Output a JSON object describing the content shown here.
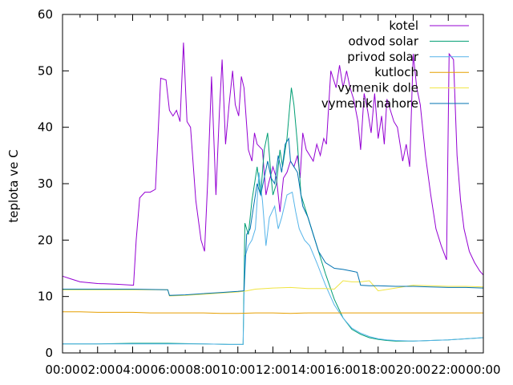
{
  "chart_data": {
    "type": "line",
    "title": "",
    "xlabel": "",
    "ylabel": "teplota ve C",
    "xlim": [
      0,
      24
    ],
    "ylim": [
      0,
      60
    ],
    "x_ticks": [
      {
        "value": 0,
        "label": "00:00"
      },
      {
        "value": 2,
        "label": "02:00"
      },
      {
        "value": 4,
        "label": "04:00"
      },
      {
        "value": 6,
        "label": "06:00"
      },
      {
        "value": 8,
        "label": "08:00"
      },
      {
        "value": 10,
        "label": "10:00"
      },
      {
        "value": 12,
        "label": "12:00"
      },
      {
        "value": 14,
        "label": "14:00"
      },
      {
        "value": 16,
        "label": "16:00"
      },
      {
        "value": 18,
        "label": "18:00"
      },
      {
        "value": 20,
        "label": "20:00"
      },
      {
        "value": 22,
        "label": "22:00"
      },
      {
        "value": 24,
        "label": "00:00"
      }
    ],
    "y_ticks": [
      0,
      10,
      20,
      30,
      40,
      50,
      60
    ],
    "grid": false,
    "legend_position": "top-right",
    "series": [
      {
        "name": "kotel",
        "color": "#9400d3",
        "points": [
          [
            0,
            13.6
          ],
          [
            0.5,
            13.1
          ],
          [
            1,
            12.6
          ],
          [
            2,
            12.3
          ],
          [
            3,
            12.2
          ],
          [
            4.05,
            12
          ],
          [
            4.2,
            20
          ],
          [
            4.4,
            27.5
          ],
          [
            4.7,
            28.5
          ],
          [
            5,
            28.5
          ],
          [
            5.3,
            29
          ],
          [
            5.6,
            48.7
          ],
          [
            5.9,
            48.4
          ],
          [
            6.1,
            43
          ],
          [
            6.3,
            42
          ],
          [
            6.5,
            43
          ],
          [
            6.7,
            41
          ],
          [
            6.9,
            55
          ],
          [
            7.1,
            41
          ],
          [
            7.3,
            40
          ],
          [
            7.6,
            27
          ],
          [
            7.9,
            20
          ],
          [
            8.1,
            18
          ],
          [
            8.3,
            32
          ],
          [
            8.5,
            49
          ],
          [
            8.75,
            28
          ],
          [
            8.95,
            43
          ],
          [
            9.1,
            52
          ],
          [
            9.3,
            37
          ],
          [
            9.5,
            44
          ],
          [
            9.7,
            50
          ],
          [
            9.85,
            44
          ],
          [
            10.05,
            42
          ],
          [
            10.2,
            49
          ],
          [
            10.35,
            47
          ],
          [
            10.6,
            36
          ],
          [
            10.8,
            34
          ],
          [
            10.95,
            39
          ],
          [
            11.1,
            37
          ],
          [
            11.4,
            36
          ],
          [
            11.6,
            28
          ],
          [
            11.75,
            30
          ],
          [
            12,
            33
          ],
          [
            12.2,
            31
          ],
          [
            12.4,
            25
          ],
          [
            12.6,
            31
          ],
          [
            12.8,
            32
          ],
          [
            13,
            34
          ],
          [
            13.2,
            33
          ],
          [
            13.4,
            35
          ],
          [
            13.55,
            31
          ],
          [
            13.7,
            39
          ],
          [
            13.9,
            36
          ],
          [
            14.1,
            35
          ],
          [
            14.3,
            34
          ],
          [
            14.5,
            37
          ],
          [
            14.7,
            35
          ],
          [
            14.9,
            38
          ],
          [
            15.05,
            37
          ],
          [
            15.3,
            50
          ],
          [
            15.6,
            47
          ],
          [
            15.8,
            51
          ],
          [
            16,
            47
          ],
          [
            16.2,
            50
          ],
          [
            16.4,
            47
          ],
          [
            16.6,
            45
          ],
          [
            16.85,
            41
          ],
          [
            17,
            36
          ],
          [
            17.2,
            46
          ],
          [
            17.4,
            43
          ],
          [
            17.6,
            39
          ],
          [
            17.8,
            46
          ],
          [
            18,
            38
          ],
          [
            18.2,
            42
          ],
          [
            18.35,
            37
          ],
          [
            18.5,
            45
          ],
          [
            18.7,
            43
          ],
          [
            18.9,
            41
          ],
          [
            19.1,
            40
          ],
          [
            19.4,
            34
          ],
          [
            19.6,
            37
          ],
          [
            19.8,
            33
          ],
          [
            20,
            53
          ],
          [
            20.2,
            47
          ],
          [
            20.4,
            44
          ],
          [
            20.7,
            35
          ],
          [
            21,
            28
          ],
          [
            21.3,
            22
          ],
          [
            21.6,
            19
          ],
          [
            21.9,
            16.5
          ],
          [
            22.05,
            53
          ],
          [
            22.3,
            52
          ],
          [
            22.5,
            35
          ],
          [
            22.7,
            27
          ],
          [
            22.9,
            22
          ],
          [
            23.2,
            18
          ],
          [
            23.5,
            16
          ],
          [
            23.8,
            14.5
          ],
          [
            24,
            13.8
          ]
        ]
      },
      {
        "name": "odvod solar",
        "color": "#009e73",
        "points": [
          [
            0,
            1.6
          ],
          [
            2,
            1.6
          ],
          [
            4,
            1.7
          ],
          [
            6,
            1.7
          ],
          [
            8,
            1.6
          ],
          [
            9.5,
            1.5
          ],
          [
            10.3,
            1.5
          ],
          [
            10.4,
            23
          ],
          [
            10.6,
            21
          ],
          [
            10.8,
            27
          ],
          [
            11.1,
            33
          ],
          [
            11.3,
            28
          ],
          [
            11.5,
            36
          ],
          [
            11.7,
            39
          ],
          [
            11.9,
            31
          ],
          [
            12,
            28
          ],
          [
            12.2,
            30
          ],
          [
            12.4,
            36
          ],
          [
            12.55,
            33
          ],
          [
            12.8,
            38
          ],
          [
            13.05,
            47
          ],
          [
            13.2,
            44
          ],
          [
            13.4,
            37
          ],
          [
            13.6,
            28
          ],
          [
            13.8,
            26
          ],
          [
            14.1,
            23
          ],
          [
            14.5,
            19
          ],
          [
            15,
            14
          ],
          [
            15.5,
            9.5
          ],
          [
            16,
            6.2
          ],
          [
            16.5,
            4.2
          ],
          [
            17,
            3.3
          ],
          [
            17.5,
            2.7
          ],
          [
            18,
            2.4
          ],
          [
            18.5,
            2.2
          ],
          [
            19,
            2.1
          ],
          [
            20,
            2.1
          ],
          [
            21,
            2.2
          ],
          [
            22,
            2.3
          ],
          [
            23,
            2.5
          ],
          [
            24,
            2.7
          ]
        ]
      },
      {
        "name": "privod solar",
        "color": "#56b4e9",
        "points": [
          [
            0,
            1.6
          ],
          [
            2,
            1.6
          ],
          [
            4,
            1.6
          ],
          [
            6,
            1.6
          ],
          [
            8,
            1.6
          ],
          [
            9.5,
            1.5
          ],
          [
            10.3,
            1.5
          ],
          [
            10.4,
            17
          ],
          [
            10.6,
            19
          ],
          [
            10.8,
            20
          ],
          [
            11,
            22
          ],
          [
            11.2,
            32
          ],
          [
            11.4,
            27
          ],
          [
            11.6,
            19
          ],
          [
            11.8,
            24
          ],
          [
            12.1,
            26
          ],
          [
            12.3,
            22
          ],
          [
            12.5,
            24
          ],
          [
            12.8,
            28
          ],
          [
            13.1,
            28.5
          ],
          [
            13.3,
            25
          ],
          [
            13.5,
            22
          ],
          [
            13.8,
            20
          ],
          [
            14.1,
            19
          ],
          [
            14.5,
            16
          ],
          [
            15,
            12
          ],
          [
            15.5,
            8.5
          ],
          [
            16,
            6.2
          ],
          [
            16.5,
            4.4
          ],
          [
            17,
            3.5
          ],
          [
            17.5,
            2.9
          ],
          [
            18,
            2.5
          ],
          [
            18.5,
            2.3
          ],
          [
            19,
            2.2
          ],
          [
            20,
            2.1
          ],
          [
            21,
            2.2
          ],
          [
            22,
            2.3
          ],
          [
            23,
            2.5
          ],
          [
            24,
            2.7
          ]
        ]
      },
      {
        "name": "kutloch",
        "color": "#e69f00",
        "points": [
          [
            0,
            7.3
          ],
          [
            1,
            7.3
          ],
          [
            2,
            7.2
          ],
          [
            3,
            7.2
          ],
          [
            4,
            7.2
          ],
          [
            5,
            7.1
          ],
          [
            6,
            7.1
          ],
          [
            7,
            7.1
          ],
          [
            8,
            7.1
          ],
          [
            9,
            7.0
          ],
          [
            10,
            7.0
          ],
          [
            11,
            7.1
          ],
          [
            12,
            7.1
          ],
          [
            13,
            7.0
          ],
          [
            14,
            7.1
          ],
          [
            15,
            7.1
          ],
          [
            16,
            7.1
          ],
          [
            17,
            7.1
          ],
          [
            18,
            7.1
          ],
          [
            19,
            7.1
          ],
          [
            20,
            7.1
          ],
          [
            21,
            7.1
          ],
          [
            22,
            7.1
          ],
          [
            23,
            7.1
          ],
          [
            24,
            7.1
          ]
        ]
      },
      {
        "name": "vymenik dole",
        "color": "#f0e442",
        "points": [
          [
            0,
            11.2
          ],
          [
            2,
            11.2
          ],
          [
            4,
            11.2
          ],
          [
            6,
            11.2
          ],
          [
            6.1,
            10.1
          ],
          [
            7,
            10.2
          ],
          [
            8,
            10.4
          ],
          [
            9,
            10.6
          ],
          [
            10,
            10.8
          ],
          [
            10.5,
            11
          ],
          [
            11,
            11.3
          ],
          [
            12,
            11.5
          ],
          [
            13,
            11.6
          ],
          [
            14,
            11.4
          ],
          [
            15,
            11.4
          ],
          [
            15.5,
            11.3
          ],
          [
            16,
            12.8
          ],
          [
            16.5,
            12.6
          ],
          [
            17,
            12.6
          ],
          [
            17.5,
            12.8
          ],
          [
            18,
            11
          ],
          [
            19,
            11.5
          ],
          [
            20,
            12
          ],
          [
            21,
            11.9
          ],
          [
            22,
            11.8
          ],
          [
            23,
            11.8
          ],
          [
            24,
            11.7
          ]
        ]
      },
      {
        "name": "vymenik nahore",
        "color": "#0072b2",
        "points": [
          [
            0,
            11.3
          ],
          [
            2,
            11.3
          ],
          [
            4,
            11.3
          ],
          [
            6,
            11.2
          ],
          [
            6.1,
            10.2
          ],
          [
            7,
            10.3
          ],
          [
            8,
            10.5
          ],
          [
            9,
            10.7
          ],
          [
            10,
            10.9
          ],
          [
            10.35,
            11
          ],
          [
            10.5,
            21
          ],
          [
            10.7,
            22
          ],
          [
            10.9,
            26
          ],
          [
            11.1,
            30
          ],
          [
            11.3,
            28
          ],
          [
            11.5,
            31
          ],
          [
            11.7,
            34
          ],
          [
            11.9,
            31
          ],
          [
            12.1,
            30
          ],
          [
            12.3,
            35
          ],
          [
            12.5,
            32
          ],
          [
            12.7,
            37
          ],
          [
            12.9,
            38
          ],
          [
            13,
            34
          ],
          [
            13.2,
            33
          ],
          [
            13.4,
            32
          ],
          [
            13.7,
            26
          ],
          [
            14,
            24
          ],
          [
            14.3,
            21
          ],
          [
            14.6,
            18
          ],
          [
            15,
            16
          ],
          [
            15.5,
            15
          ],
          [
            16,
            14.8
          ],
          [
            16.5,
            14.5
          ],
          [
            16.8,
            14.3
          ],
          [
            17,
            12
          ],
          [
            17.5,
            11.9
          ],
          [
            18,
            11.9
          ],
          [
            19,
            11.8
          ],
          [
            20,
            11.8
          ],
          [
            21,
            11.7
          ],
          [
            22,
            11.6
          ],
          [
            23,
            11.6
          ],
          [
            24,
            11.5
          ]
        ]
      }
    ]
  }
}
